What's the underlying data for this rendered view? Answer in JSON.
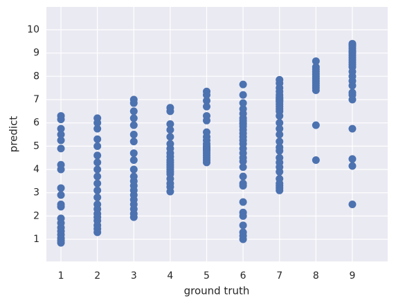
{
  "chart_data": {
    "type": "scatter",
    "xlabel": "ground truth",
    "ylabel": "predict",
    "xlim": [
      0.6,
      9.97
    ],
    "ylim": [
      0.05,
      10.98
    ],
    "xticks": [
      1,
      2,
      3,
      4,
      5,
      6,
      7,
      8,
      9
    ],
    "yticks": [
      1,
      2,
      3,
      4,
      5,
      6,
      7,
      8,
      9,
      10
    ],
    "grid": true,
    "background": "#eaeaf2",
    "series": [
      {
        "color": "#4c72b0",
        "x": [
          1,
          1,
          1,
          1,
          1,
          1,
          1,
          1,
          1,
          1,
          1,
          1,
          1,
          1,
          1,
          1,
          1,
          1,
          1,
          1
        ],
        "values": [
          6.3,
          6.15,
          5.75,
          5.5,
          5.25,
          4.9,
          4.2,
          4.0,
          3.2,
          2.9,
          2.5,
          2.4,
          1.9,
          1.7,
          1.5,
          1.35,
          1.2,
          1.05,
          0.95,
          0.85
        ]
      },
      {
        "color": "#4c72b0",
        "x": [
          2,
          2,
          2,
          2,
          2,
          2,
          2,
          2,
          2,
          2,
          2,
          2,
          2,
          2,
          2,
          2,
          2,
          2,
          2,
          2
        ],
        "values": [
          6.2,
          6.0,
          5.75,
          5.3,
          5.0,
          4.6,
          4.3,
          4.0,
          3.7,
          3.4,
          3.1,
          2.8,
          2.5,
          2.3,
          2.1,
          1.95,
          1.8,
          1.6,
          1.45,
          1.3
        ]
      },
      {
        "color": "#4c72b0",
        "x": [
          3,
          3,
          3,
          3,
          3,
          3,
          3,
          3,
          3,
          3,
          3,
          3,
          3,
          3,
          3,
          3,
          3,
          3,
          3,
          3
        ],
        "values": [
          7.0,
          6.85,
          6.5,
          6.2,
          5.9,
          5.5,
          5.2,
          4.7,
          4.4,
          4.0,
          3.7,
          3.5,
          3.3,
          3.1,
          2.9,
          2.7,
          2.5,
          2.3,
          2.1,
          1.95
        ]
      },
      {
        "color": "#4c72b0",
        "x": [
          4,
          4,
          4,
          4,
          4,
          4,
          4,
          4,
          4,
          4,
          4,
          4,
          4,
          4,
          4,
          4,
          4,
          4,
          4,
          4
        ],
        "values": [
          6.65,
          6.5,
          5.95,
          5.7,
          5.4,
          5.1,
          4.9,
          4.7,
          4.55,
          4.4,
          4.3,
          4.2,
          4.1,
          4.0,
          3.9,
          3.8,
          3.6,
          3.4,
          3.25,
          3.05
        ]
      },
      {
        "color": "#4c72b0",
        "x": [
          5,
          5,
          5,
          5,
          5,
          5,
          5,
          5,
          5,
          5,
          5,
          5,
          5,
          5,
          5,
          5,
          5,
          5,
          5,
          5
        ],
        "values": [
          7.35,
          7.2,
          6.95,
          6.7,
          6.3,
          6.1,
          5.6,
          5.4,
          5.25,
          5.1,
          5.0,
          4.95,
          4.9,
          4.85,
          4.8,
          4.7,
          4.6,
          4.5,
          4.4,
          4.3
        ]
      },
      {
        "color": "#4c72b0",
        "x": [
          6,
          6,
          6,
          6,
          6,
          6,
          6,
          6,
          6,
          6,
          6,
          6,
          6,
          6,
          6,
          6,
          6,
          6,
          6,
          6,
          6,
          6,
          6,
          6,
          6,
          6,
          6,
          6,
          6,
          6
        ],
        "values": [
          7.65,
          7.2,
          6.85,
          6.6,
          6.4,
          6.2,
          6.0,
          5.85,
          5.7,
          5.55,
          5.4,
          5.25,
          5.1,
          4.9,
          4.7,
          4.5,
          4.35,
          4.1,
          3.7,
          3.4,
          3.3,
          2.6,
          2.15,
          2.0,
          1.6,
          1.3,
          1.15,
          1.0,
          5.95,
          6.1
        ]
      },
      {
        "color": "#4c72b0",
        "x": [
          7,
          7,
          7,
          7,
          7,
          7,
          7,
          7,
          7,
          7,
          7,
          7,
          7,
          7,
          7,
          7,
          7,
          7,
          7,
          7,
          7,
          7,
          7,
          7,
          7,
          7,
          7,
          7,
          7,
          7
        ],
        "values": [
          7.85,
          7.7,
          7.5,
          7.35,
          7.2,
          7.1,
          7.0,
          6.9,
          6.8,
          6.7,
          6.6,
          6.5,
          6.3,
          6.0,
          5.75,
          5.5,
          5.2,
          4.95,
          4.8,
          4.5,
          4.3,
          4.1,
          3.9,
          3.6,
          3.4,
          3.3,
          3.2,
          3.1,
          6.95,
          7.05
        ]
      },
      {
        "color": "#4c72b0",
        "x": [
          8,
          8,
          8,
          8,
          8,
          8,
          8,
          8,
          8,
          8,
          8,
          8,
          8,
          8
        ],
        "values": [
          8.65,
          8.4,
          8.3,
          8.2,
          8.1,
          8.0,
          7.9,
          7.8,
          7.7,
          7.6,
          7.5,
          7.4,
          5.9,
          4.4
        ]
      },
      {
        "color": "#4c72b0",
        "x": [
          9,
          9,
          9,
          9,
          9,
          9,
          9,
          9,
          9,
          9,
          9,
          9,
          9,
          9,
          9,
          9,
          9,
          9,
          9,
          9,
          9,
          9,
          9,
          9
        ],
        "values": [
          9.4,
          9.3,
          9.2,
          9.1,
          9.0,
          8.9,
          8.8,
          8.7,
          8.6,
          8.5,
          8.4,
          8.2,
          8.0,
          7.8,
          7.6,
          7.3,
          7.2,
          7.0,
          5.75,
          4.45,
          4.15,
          2.5,
          9.35,
          9.05
        ]
      }
    ]
  }
}
